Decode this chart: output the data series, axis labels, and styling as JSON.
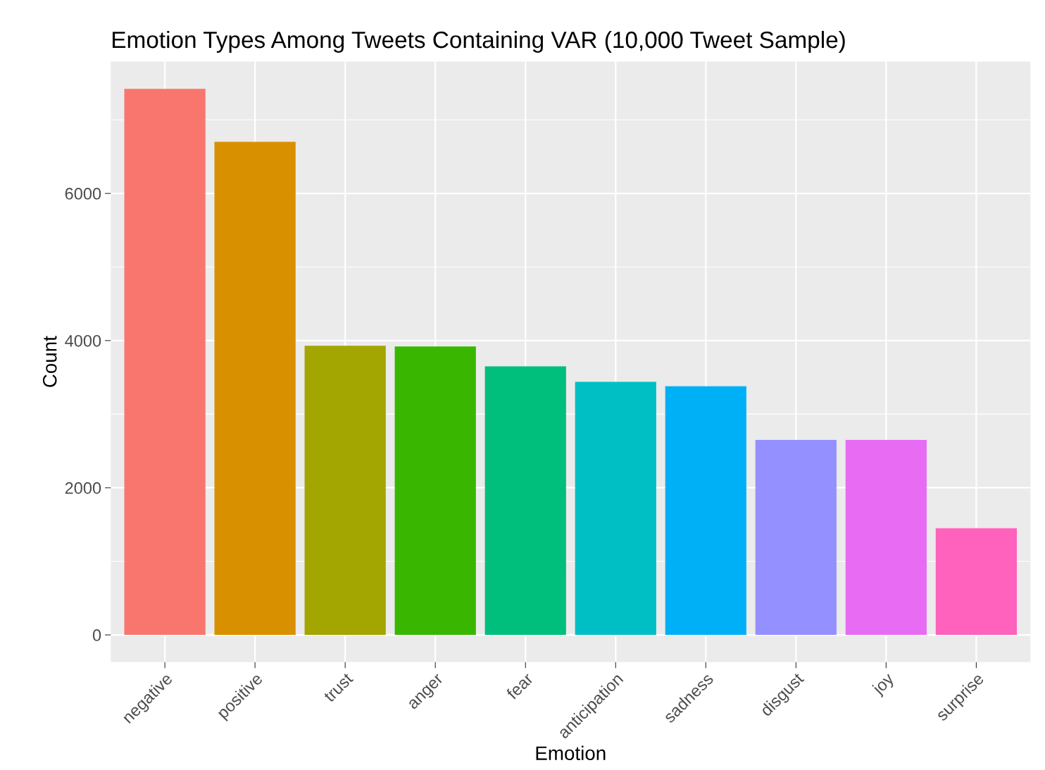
{
  "chart_data": {
    "type": "bar",
    "title": "Emotion Types Among Tweets Containing VAR (10,000 Tweet Sample)",
    "xlabel": "Emotion",
    "ylabel": "Count",
    "categories": [
      "negative",
      "positive",
      "trust",
      "anger",
      "fear",
      "anticipation",
      "sadness",
      "disgust",
      "joy",
      "surprise"
    ],
    "values": [
      7420,
      6700,
      3930,
      3920,
      3650,
      3440,
      3380,
      2650,
      2650,
      1450
    ],
    "colors": [
      "#f8766d",
      "#d89000",
      "#a3a500",
      "#39b600",
      "#00bf7d",
      "#00bfc4",
      "#00b0f6",
      "#9590ff",
      "#e76bf3",
      "#ff62bc"
    ],
    "ylim": [
      -371,
      7791
    ],
    "yticks": [
      0,
      2000,
      4000,
      6000
    ],
    "grid": true
  }
}
